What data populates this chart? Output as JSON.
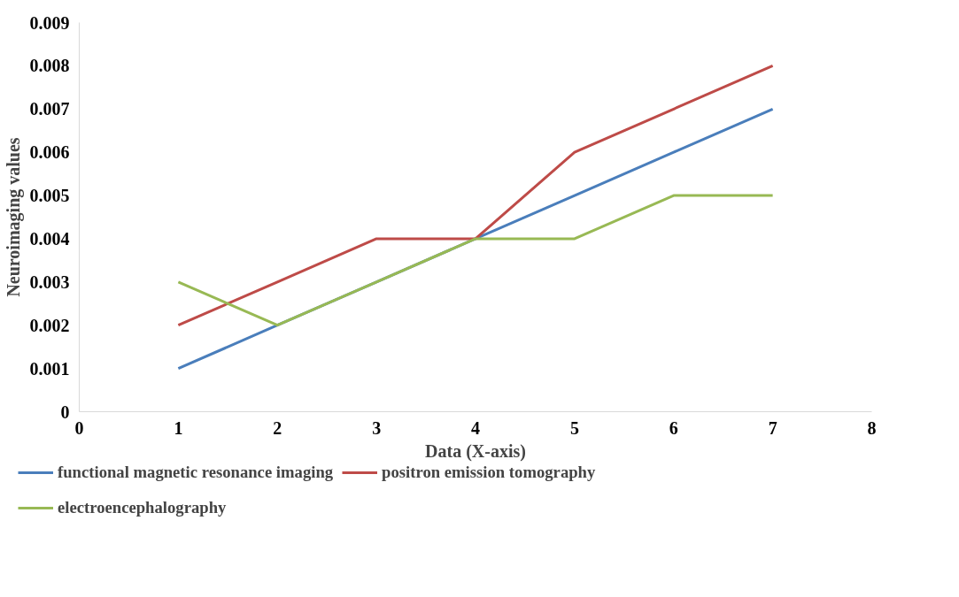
{
  "chart_data": {
    "type": "line",
    "xlabel": "Data (X-axis)",
    "ylabel": "Neuroimaging values",
    "x": [
      1,
      2,
      3,
      4,
      5,
      6,
      7
    ],
    "series": [
      {
        "name": "functional magnetic resonance imaging",
        "color": "#4a7ebb",
        "values": [
          0.001,
          0.002,
          0.003,
          0.004,
          0.005,
          0.006,
          0.007
        ]
      },
      {
        "name": "positron emission tomography",
        "color": "#be4b48",
        "values": [
          0.002,
          0.003,
          0.004,
          0.004,
          0.006,
          0.007,
          0.008
        ]
      },
      {
        "name": "electroencephalography",
        "color": "#98b954",
        "values": [
          0.003,
          0.002,
          0.003,
          0.004,
          0.004,
          0.005,
          0.005
        ]
      }
    ],
    "xlim": [
      0,
      8
    ],
    "xticks": [
      0,
      1,
      2,
      3,
      4,
      5,
      6,
      7,
      8
    ],
    "ylim": [
      0,
      0.009
    ],
    "yticks": [
      0,
      0.001,
      0.002,
      0.003,
      0.004,
      0.005,
      0.006,
      0.007,
      0.008,
      0.009
    ],
    "grid": false,
    "legend": "bottom",
    "marker": "none",
    "line_style": "solid"
  }
}
